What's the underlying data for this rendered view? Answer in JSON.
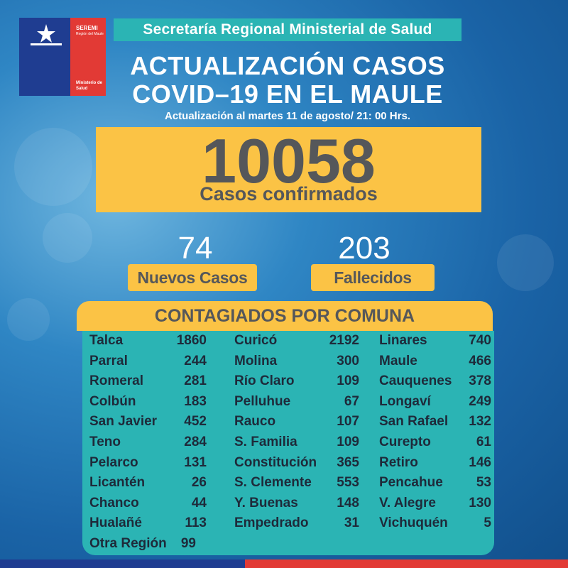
{
  "logo": {
    "line1": "SEREMI",
    "line2": "Región del Maule",
    "line3": "Ministerio de Salud"
  },
  "header": {
    "ministry": "Secretaría Regional Ministerial de Salud",
    "title_line1": "ACTUALIZACIÓN CASOS",
    "title_line2": "COVID–19 EN EL MAULE",
    "update": "Actualización al martes 11 de agosto/ 21: 00 Hrs."
  },
  "totals": {
    "confirmed_value": "10058",
    "confirmed_label": "Casos confirmados",
    "new_value": "74",
    "new_label": "Nuevos Casos",
    "deaths_value": "203",
    "deaths_label": "Fallecidos"
  },
  "table": {
    "title": "CONTAGIADOS POR COMUNA",
    "col1": [
      {
        "name": "Talca",
        "value": "1860"
      },
      {
        "name": "Parral",
        "value": "244"
      },
      {
        "name": "Romeral",
        "value": "281"
      },
      {
        "name": "Colbún",
        "value": "183"
      },
      {
        "name": "San Javier",
        "value": "452"
      },
      {
        "name": "Teno",
        "value": "284"
      },
      {
        "name": "Pelarco",
        "value": "131"
      },
      {
        "name": "Licantén",
        "value": "26"
      },
      {
        "name": "Chanco",
        "value": "44"
      },
      {
        "name": "Hualañé",
        "value": "113"
      },
      {
        "name": "Otra Región",
        "value": "99"
      }
    ],
    "col2": [
      {
        "name": "Curicó",
        "value": "2192"
      },
      {
        "name": "Molina",
        "value": "300"
      },
      {
        "name": "Río Claro",
        "value": "109"
      },
      {
        "name": "Pelluhue",
        "value": "67"
      },
      {
        "name": "Rauco",
        "value": "107"
      },
      {
        "name": "S. Familia",
        "value": "109"
      },
      {
        "name": "Constitución",
        "value": "365"
      },
      {
        "name": "S. Clemente",
        "value": "553"
      },
      {
        "name": "Y. Buenas",
        "value": "148"
      },
      {
        "name": "Empedrado",
        "value": "31"
      }
    ],
    "col3": [
      {
        "name": "Linares",
        "value": "740"
      },
      {
        "name": "Maule",
        "value": "466"
      },
      {
        "name": "Cauquenes",
        "value": "378"
      },
      {
        "name": "Longaví",
        "value": "249"
      },
      {
        "name": "San Rafael",
        "value": "132"
      },
      {
        "name": "Curepto",
        "value": "61"
      },
      {
        "name": "Retiro",
        "value": "146"
      },
      {
        "name": "Pencahue",
        "value": "53"
      },
      {
        "name": "V. Alegre",
        "value": "130"
      },
      {
        "name": "Vichuquén",
        "value": "5"
      }
    ]
  },
  "colors": {
    "yellow": "#fbc345",
    "teal": "#2bb4b4",
    "gov_blue": "#1f3d91",
    "gov_red": "#e23a35"
  }
}
